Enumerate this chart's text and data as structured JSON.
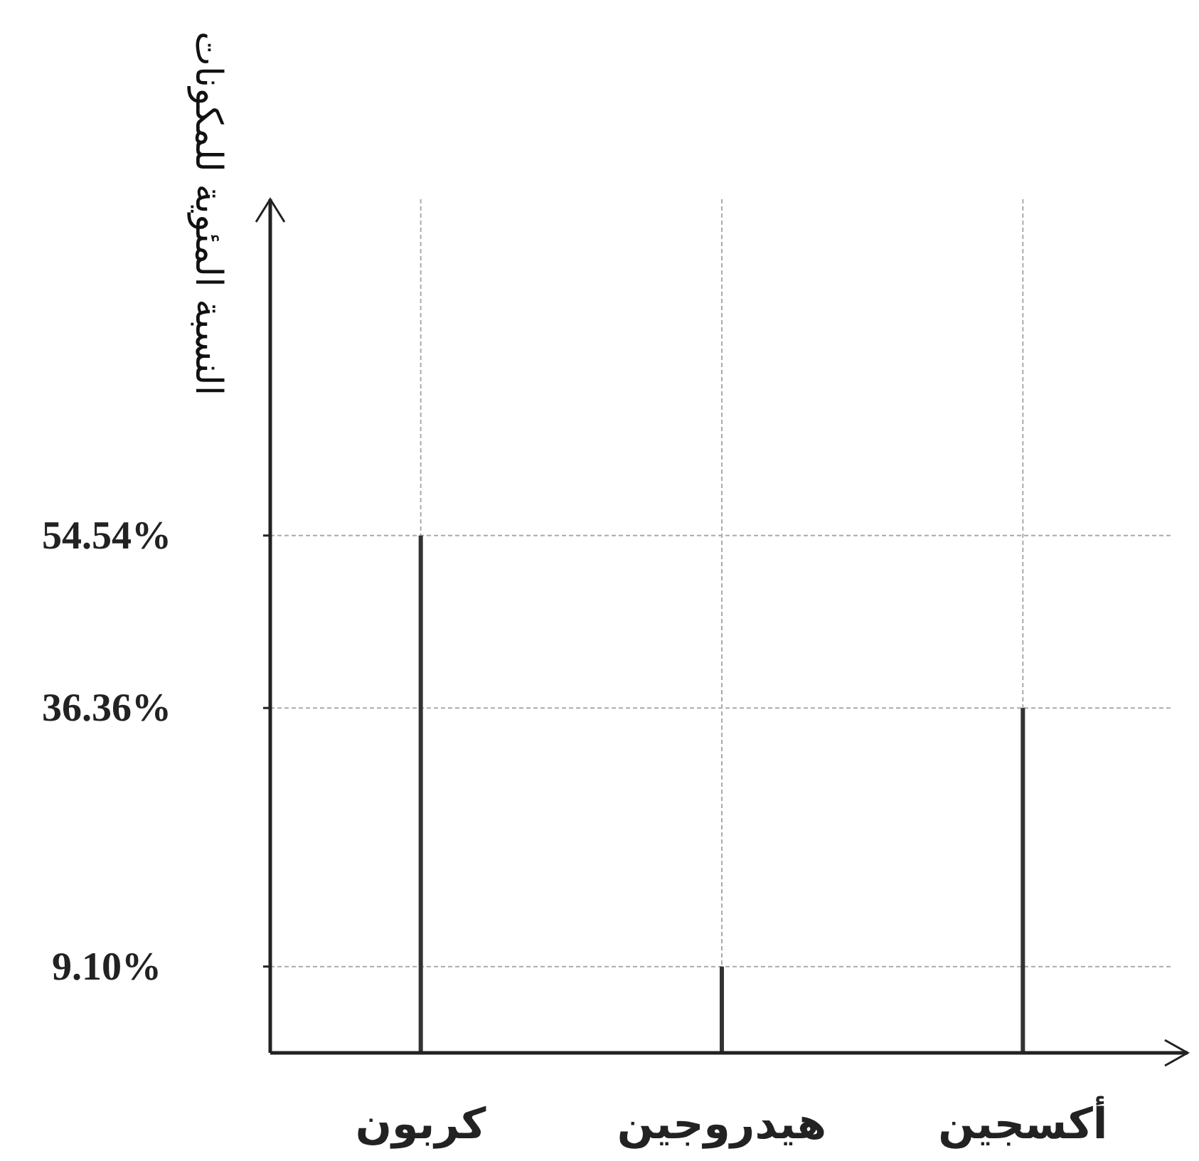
{
  "chart_data": {
    "type": "bar",
    "ylabel": "النسبة المئوية للمكونات",
    "categories": [
      "كربون",
      "هيدروجين",
      "أكسجين"
    ],
    "values": [
      54.54,
      9.1,
      36.36
    ],
    "color": "#333333",
    "ylim": [
      0,
      90
    ],
    "yticks": [
      {
        "value": 9.1,
        "label": "9.10%"
      },
      {
        "value": 36.36,
        "label": "36.36%"
      },
      {
        "value": 54.54,
        "label": "54.54%"
      }
    ],
    "grid": true
  }
}
